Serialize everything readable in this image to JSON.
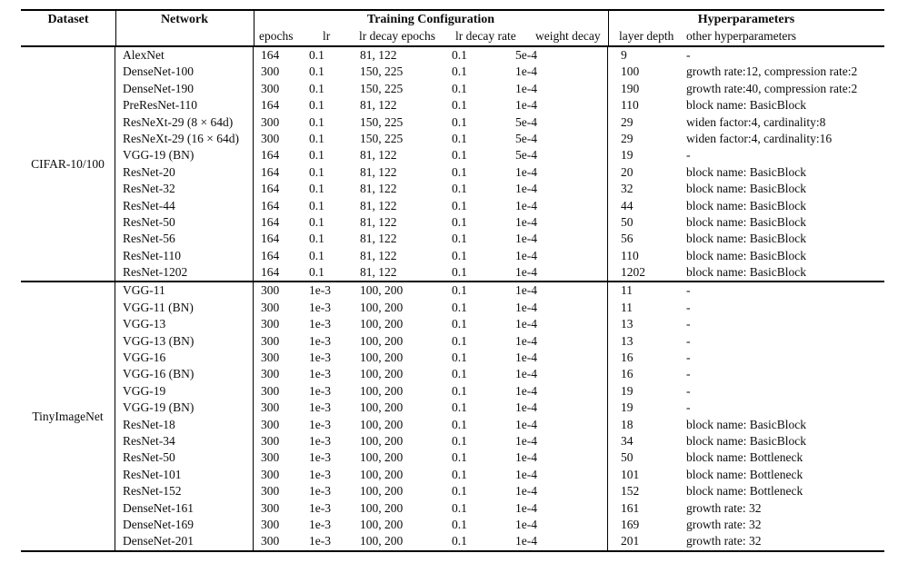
{
  "page": {
    "background": "#ffffff",
    "text_color": "#0c0c0c",
    "rule_color": "#000000"
  },
  "table": {
    "headers": {
      "dataset": "Dataset",
      "network": "Network",
      "training_config_group": "Training Configuration",
      "hyperparameters_group": "Hyperparameters",
      "epochs": "epochs",
      "lr": "lr",
      "lr_decay_epochs": "lr decay epochs",
      "lr_decay_rate": "lr decay rate",
      "weight_decay": "weight decay",
      "layer_depth": "layer depth",
      "other_hyperparameters": "other hyperparameters"
    },
    "sections": [
      {
        "dataset": "CIFAR-10/100",
        "rows": [
          [
            "AlexNet",
            "164",
            "0.1",
            "81, 122",
            "0.1",
            "5e-4",
            "9",
            "-"
          ],
          [
            "DenseNet-100",
            "300",
            "0.1",
            "150, 225",
            "0.1",
            "1e-4",
            "100",
            "growth rate:12, compression rate:2"
          ],
          [
            "DenseNet-190",
            "300",
            "0.1",
            "150, 225",
            "0.1",
            "1e-4",
            "190",
            "growth rate:40, compression rate:2"
          ],
          [
            "PreResNet-110",
            "164",
            "0.1",
            "81, 122",
            "0.1",
            "1e-4",
            "110",
            "block name: BasicBlock"
          ],
          [
            "ResNeXt-29 (8 × 64d)",
            "300",
            "0.1",
            "150, 225",
            "0.1",
            "5e-4",
            "29",
            "widen factor:4, cardinality:8"
          ],
          [
            "ResNeXt-29 (16 × 64d)",
            "300",
            "0.1",
            "150, 225",
            "0.1",
            "5e-4",
            "29",
            "widen factor:4, cardinality:16"
          ],
          [
            "VGG-19 (BN)",
            "164",
            "0.1",
            "81, 122",
            "0.1",
            "5e-4",
            "19",
            "-"
          ],
          [
            "ResNet-20",
            "164",
            "0.1",
            "81, 122",
            "0.1",
            "1e-4",
            "20",
            "block name: BasicBlock"
          ],
          [
            "ResNet-32",
            "164",
            "0.1",
            "81, 122",
            "0.1",
            "1e-4",
            "32",
            "block name: BasicBlock"
          ],
          [
            "ResNet-44",
            "164",
            "0.1",
            "81, 122",
            "0.1",
            "1e-4",
            "44",
            "block name: BasicBlock"
          ],
          [
            "ResNet-50",
            "164",
            "0.1",
            "81, 122",
            "0.1",
            "1e-4",
            "50",
            "block name: BasicBlock"
          ],
          [
            "ResNet-56",
            "164",
            "0.1",
            "81, 122",
            "0.1",
            "1e-4",
            "56",
            "block name: BasicBlock"
          ],
          [
            "ResNet-110",
            "164",
            "0.1",
            "81, 122",
            "0.1",
            "1e-4",
            "110",
            "block name: BasicBlock"
          ],
          [
            "ResNet-1202",
            "164",
            "0.1",
            "81, 122",
            "0.1",
            "1e-4",
            "1202",
            "block name: BasicBlock"
          ]
        ]
      },
      {
        "dataset": "TinyImageNet",
        "rows": [
          [
            "VGG-11",
            "300",
            "1e-3",
            "100, 200",
            "0.1",
            "1e-4",
            "11",
            "-"
          ],
          [
            "VGG-11 (BN)",
            "300",
            "1e-3",
            "100, 200",
            "0.1",
            "1e-4",
            "11",
            "-"
          ],
          [
            "VGG-13",
            "300",
            "1e-3",
            "100, 200",
            "0.1",
            "1e-4",
            "13",
            "-"
          ],
          [
            "VGG-13 (BN)",
            "300",
            "1e-3",
            "100, 200",
            "0.1",
            "1e-4",
            "13",
            "-"
          ],
          [
            "VGG-16",
            "300",
            "1e-3",
            "100, 200",
            "0.1",
            "1e-4",
            "16",
            "-"
          ],
          [
            "VGG-16 (BN)",
            "300",
            "1e-3",
            "100, 200",
            "0.1",
            "1e-4",
            "16",
            "-"
          ],
          [
            "VGG-19",
            "300",
            "1e-3",
            "100, 200",
            "0.1",
            "1e-4",
            "19",
            "-"
          ],
          [
            "VGG-19 (BN)",
            "300",
            "1e-3",
            "100, 200",
            "0.1",
            "1e-4",
            "19",
            "-"
          ],
          [
            "ResNet-18",
            "300",
            "1e-3",
            "100, 200",
            "0.1",
            "1e-4",
            "18",
            "block name: BasicBlock"
          ],
          [
            "ResNet-34",
            "300",
            "1e-3",
            "100, 200",
            "0.1",
            "1e-4",
            "34",
            "block name: BasicBlock"
          ],
          [
            "ResNet-50",
            "300",
            "1e-3",
            "100, 200",
            "0.1",
            "1e-4",
            "50",
            "block name: Bottleneck"
          ],
          [
            "ResNet-101",
            "300",
            "1e-3",
            "100, 200",
            "0.1",
            "1e-4",
            "101",
            "block name: Bottleneck"
          ],
          [
            "ResNet-152",
            "300",
            "1e-3",
            "100, 200",
            "0.1",
            "1e-4",
            "152",
            "block name: Bottleneck"
          ],
          [
            "DenseNet-161",
            "300",
            "1e-3",
            "100, 200",
            "0.1",
            "1e-4",
            "161",
            "growth rate: 32"
          ],
          [
            "DenseNet-169",
            "300",
            "1e-3",
            "100, 200",
            "0.1",
            "1e-4",
            "169",
            "growth rate: 32"
          ],
          [
            "DenseNet-201",
            "300",
            "1e-3",
            "100, 200",
            "0.1",
            "1e-4",
            "201",
            "growth rate: 32"
          ]
        ]
      }
    ]
  }
}
